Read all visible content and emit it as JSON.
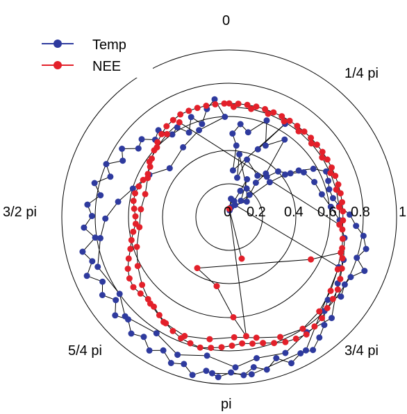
{
  "chart_data": {
    "type": "polar-scatter",
    "radial_ticks": [
      "0",
      "0.2",
      "0.4",
      "0.6",
      "0.8",
      "1"
    ],
    "angle_labels": [
      "0",
      "1/4 pi",
      "3/4 pi",
      "pi",
      "5/4 pi",
      "3/2 pi"
    ],
    "rlim": [
      0,
      1
    ],
    "legend_position": "top-left",
    "series": [
      {
        "name": "Temp",
        "color": "#2e3a9e",
        "points": [
          [
            0.44,
            0.4
          ],
          [
            0.65,
            0.54
          ],
          [
            0.28,
            0.08
          ],
          [
            0.43,
            0.1
          ],
          [
            0.5,
            0.04
          ],
          [
            0.56,
            0.12
          ],
          [
            0.52,
            0.22
          ],
          [
            0.62,
            0.37
          ],
          [
            0.48,
            0.47
          ],
          [
            0.57,
            0.62
          ],
          [
            0.34,
            0.7
          ],
          [
            0.26,
            0.66
          ],
          [
            0.18,
            0.74
          ],
          [
            0.12,
            0.62
          ],
          [
            0.25,
            0.44
          ],
          [
            0.17,
            0.4
          ],
          [
            0.1,
            0.3
          ],
          [
            0.06,
            0.2
          ],
          [
            0.11,
            0.1
          ],
          [
            0.04,
            0.06
          ],
          [
            0.32,
            0.86
          ],
          [
            0.42,
            0.92
          ],
          [
            0.5,
            0.98
          ],
          [
            0.58,
            1.05
          ],
          [
            0.64,
            1.13
          ],
          [
            0.63,
            1.22
          ],
          [
            0.62,
            1.3
          ],
          [
            0.63,
            1.39
          ],
          [
            0.66,
            1.47
          ],
          [
            0.72,
            1.55
          ],
          [
            0.76,
            1.64
          ],
          [
            0.81,
            1.71
          ],
          [
            0.84,
            1.8
          ],
          [
            0.8,
            1.88
          ],
          [
            0.87,
            1.95
          ],
          [
            0.81,
            2.03
          ],
          [
            0.8,
            2.1
          ],
          [
            0.82,
            2.19
          ],
          [
            0.77,
            2.27
          ],
          [
            0.8,
            2.35
          ],
          [
            0.86,
            2.42
          ],
          [
            0.9,
            2.5
          ],
          [
            0.94,
            2.58
          ],
          [
            0.92,
            2.66
          ],
          [
            0.95,
            2.74
          ],
          [
            0.89,
            2.82
          ],
          [
            0.94,
            2.9
          ],
          [
            0.91,
            2.98
          ],
          [
            0.95,
            3.05
          ],
          [
            0.93,
            3.13
          ],
          [
            0.96,
            3.21
          ],
          [
            0.93,
            3.29
          ],
          [
            0.97,
            3.37
          ],
          [
            0.92,
            3.44
          ],
          [
            0.94,
            3.52
          ],
          [
            0.89,
            3.6
          ],
          [
            0.93,
            3.68
          ],
          [
            0.88,
            3.76
          ],
          [
            0.91,
            3.84
          ],
          [
            0.86,
            3.92
          ],
          [
            0.9,
            4.0
          ],
          [
            0.84,
            4.08
          ],
          [
            0.89,
            4.16
          ],
          [
            0.85,
            4.24
          ],
          [
            0.92,
            4.32
          ],
          [
            0.86,
            4.4
          ],
          [
            0.9,
            4.48
          ],
          [
            0.81,
            4.56
          ],
          [
            0.87,
            4.64
          ],
          [
            0.82,
            4.72
          ],
          [
            0.85,
            4.8
          ],
          [
            0.78,
            4.88
          ],
          [
            0.83,
            4.96
          ],
          [
            0.75,
            5.04
          ],
          [
            0.8,
            5.12
          ],
          [
            0.72,
            5.2
          ],
          [
            0.76,
            5.28
          ],
          [
            0.68,
            5.36
          ],
          [
            0.7,
            5.44
          ],
          [
            0.64,
            5.52
          ],
          [
            0.67,
            5.6
          ],
          [
            0.6,
            5.68
          ],
          [
            0.62,
            5.76
          ],
          [
            0.56,
            5.84
          ],
          [
            0.64,
            5.92
          ],
          [
            0.58,
            6.0
          ],
          [
            0.66,
            6.08
          ],
          [
            0.71,
            6.16
          ],
          [
            0.6,
            6.24
          ],
          [
            0.55,
            5.95
          ],
          [
            0.5,
            5.7
          ],
          [
            0.46,
            5.4
          ],
          [
            0.54,
            5.2
          ],
          [
            0.6,
            5.0
          ],
          [
            0.67,
            4.85
          ],
          [
            0.74,
            4.7
          ],
          [
            0.78,
            4.55
          ],
          [
            0.84,
            4.35
          ],
          [
            0.8,
            4.1
          ],
          [
            0.86,
            3.95
          ],
          [
            0.82,
            3.7
          ],
          [
            0.88,
            3.5
          ],
          [
            0.84,
            3.3
          ],
          [
            0.9,
            3.1
          ],
          [
            0.86,
            2.95
          ],
          [
            0.88,
            2.75
          ],
          [
            0.83,
            2.55
          ],
          [
            0.86,
            2.35
          ],
          [
            0.76,
            2.12
          ],
          [
            0.73,
            1.93
          ],
          [
            0.7,
            1.75
          ],
          [
            0.66,
            1.6
          ],
          [
            0.61,
            1.47
          ],
          [
            0.57,
            1.33
          ],
          [
            0.55,
            1.18
          ],
          [
            0.52,
            1.03
          ],
          [
            0.45,
            0.95
          ],
          [
            0.4,
            0.82
          ],
          [
            0.33,
            0.75
          ],
          [
            0.3,
            0.6
          ],
          [
            0.36,
            0.3
          ],
          [
            0.24,
            0.2
          ],
          [
            0.38,
            0.16
          ],
          [
            0.2,
            0.55
          ],
          [
            0.14,
            0.85
          ],
          [
            0.08,
            0.45
          ],
          [
            0.72,
            2.0
          ],
          [
            0.92,
            2.62
          ],
          [
            0.95,
            3.0
          ],
          [
            0.94,
            3.25
          ]
        ]
      },
      {
        "name": "NEE",
        "color": "#e3202a",
        "points": [
          [
            0.68,
            0.0
          ],
          [
            0.68,
            0.08
          ],
          [
            0.68,
            0.16
          ],
          [
            0.68,
            0.24
          ],
          [
            0.68,
            0.32
          ],
          [
            0.68,
            0.4
          ],
          [
            0.68,
            0.48
          ],
          [
            0.68,
            0.56
          ],
          [
            0.68,
            0.64
          ],
          [
            0.68,
            0.72
          ],
          [
            0.68,
            0.8
          ],
          [
            0.68,
            0.88
          ],
          [
            0.68,
            0.96
          ],
          [
            0.68,
            1.04
          ],
          [
            0.68,
            1.12
          ],
          [
            0.68,
            1.2
          ],
          [
            0.68,
            1.28
          ],
          [
            0.68,
            1.36
          ],
          [
            0.68,
            1.44
          ],
          [
            0.68,
            1.52
          ],
          [
            0.68,
            1.6
          ],
          [
            0.68,
            1.68
          ],
          [
            0.69,
            1.76
          ],
          [
            0.7,
            1.84
          ],
          [
            0.72,
            1.92
          ],
          [
            0.74,
            2.0
          ],
          [
            0.76,
            2.08
          ],
          [
            0.78,
            2.16
          ],
          [
            0.79,
            2.24
          ],
          [
            0.8,
            2.32
          ],
          [
            0.82,
            2.4
          ],
          [
            0.83,
            2.48
          ],
          [
            0.84,
            2.56
          ],
          [
            0.83,
            2.64
          ],
          [
            0.82,
            2.72
          ],
          [
            0.8,
            2.8
          ],
          [
            0.78,
            2.88
          ],
          [
            0.77,
            2.96
          ],
          [
            0.76,
            3.04
          ],
          [
            0.77,
            3.12
          ],
          [
            0.78,
            3.2
          ],
          [
            0.79,
            3.28
          ],
          [
            0.8,
            3.36
          ],
          [
            0.79,
            3.44
          ],
          [
            0.78,
            3.52
          ],
          [
            0.76,
            3.6
          ],
          [
            0.74,
            3.68
          ],
          [
            0.72,
            3.76
          ],
          [
            0.7,
            3.84
          ],
          [
            0.69,
            3.92
          ],
          [
            0.7,
            4.0
          ],
          [
            0.71,
            4.08
          ],
          [
            0.7,
            4.16
          ],
          [
            0.68,
            4.24
          ],
          [
            0.65,
            4.32
          ],
          [
            0.62,
            4.4
          ],
          [
            0.6,
            4.48
          ],
          [
            0.58,
            4.56
          ],
          [
            0.56,
            4.64
          ],
          [
            0.56,
            4.72
          ],
          [
            0.57,
            4.8
          ],
          [
            0.58,
            4.88
          ],
          [
            0.58,
            4.96
          ],
          [
            0.57,
            5.04
          ],
          [
            0.56,
            5.12
          ],
          [
            0.55,
            5.2
          ],
          [
            0.56,
            5.28
          ],
          [
            0.58,
            5.36
          ],
          [
            0.6,
            5.44
          ],
          [
            0.62,
            5.52
          ],
          [
            0.64,
            5.6
          ],
          [
            0.66,
            5.68
          ],
          [
            0.67,
            5.76
          ],
          [
            0.68,
            5.84
          ],
          [
            0.68,
            5.92
          ],
          [
            0.68,
            6.0
          ],
          [
            0.68,
            6.08
          ],
          [
            0.68,
            6.16
          ],
          [
            0.68,
            6.24
          ],
          [
            0.66,
            0.04
          ],
          [
            0.66,
            0.2
          ],
          [
            0.66,
            0.36
          ],
          [
            0.66,
            0.52
          ],
          [
            0.66,
            0.68
          ],
          [
            0.66,
            0.84
          ],
          [
            0.66,
            1.0
          ],
          [
            0.66,
            1.16
          ],
          [
            0.66,
            1.32
          ],
          [
            0.66,
            1.48
          ],
          [
            0.66,
            1.64
          ],
          [
            0.64,
            5.8
          ],
          [
            0.62,
            5.64
          ],
          [
            0.6,
            5.48
          ],
          [
            0.58,
            5.32
          ],
          [
            0.54,
            5.16
          ],
          [
            0.52,
            4.98
          ],
          [
            0.53,
            4.8
          ],
          [
            0.54,
            4.6
          ],
          [
            0.58,
            4.4
          ],
          [
            0.62,
            4.22
          ],
          [
            0.66,
            4.05
          ],
          [
            0.7,
            3.88
          ],
          [
            0.74,
            3.7
          ],
          [
            0.76,
            3.5
          ],
          [
            0.74,
            3.3
          ],
          [
            0.72,
            3.1
          ],
          [
            0.74,
            2.92
          ],
          [
            0.78,
            2.74
          ],
          [
            0.8,
            2.56
          ],
          [
            0.78,
            2.38
          ],
          [
            0.75,
            2.2
          ],
          [
            0.72,
            2.02
          ],
          [
            0.7,
            1.88
          ],
          [
            0.55,
            2.05
          ],
          [
            0.36,
            3.7
          ],
          [
            0.42,
            3.32
          ],
          [
            0.6,
            3.1
          ],
          [
            0.72,
            3.0
          ],
          [
            0.05,
            0.0
          ],
          [
            0.26,
            2.85
          ]
        ]
      }
    ]
  }
}
